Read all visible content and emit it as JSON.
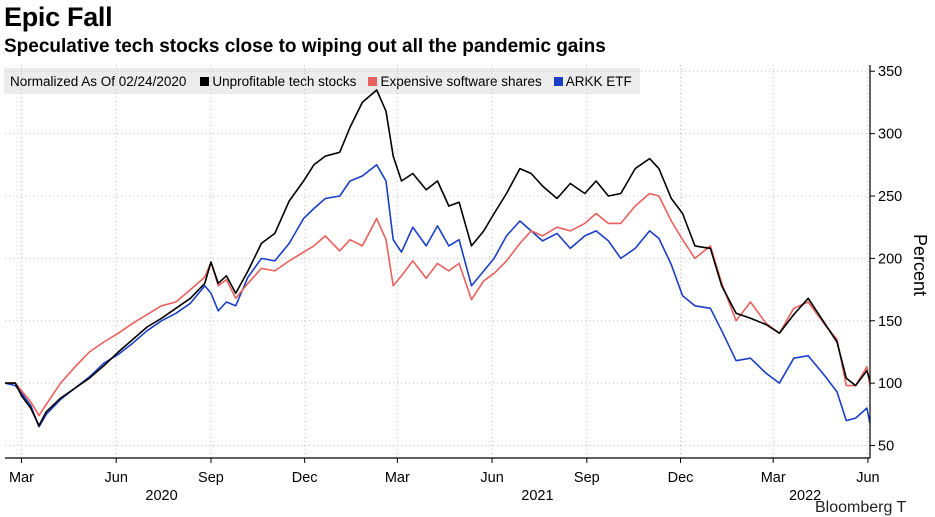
{
  "header": {
    "title": "Epic Fall",
    "subtitle": "Speculative tech stocks close to wiping out all the pandemic gains"
  },
  "source": "Bloomberg T",
  "chart_data": {
    "type": "line",
    "title": "Epic Fall",
    "subtitle": "Speculative tech stocks close to wiping out all the pandemic gains",
    "note": "Normalized As Of 02/24/2020",
    "ylabel": "Percent",
    "y_axis_side": "right",
    "ylim": [
      40,
      355
    ],
    "yticks": [
      50,
      100,
      150,
      200,
      250,
      300,
      350
    ],
    "grid": true,
    "legend_position": "top-left",
    "xlim": [
      "2020-02-14",
      "2022-06-03"
    ],
    "month_ticks": [
      {
        "date": "2020-03-01",
        "label": "Mar"
      },
      {
        "date": "2020-06-01",
        "label": "Jun"
      },
      {
        "date": "2020-09-01",
        "label": "Sep"
      },
      {
        "date": "2020-12-01",
        "label": "Dec"
      },
      {
        "date": "2021-03-01",
        "label": "Mar"
      },
      {
        "date": "2021-06-01",
        "label": "Jun"
      },
      {
        "date": "2021-09-01",
        "label": "Sep"
      },
      {
        "date": "2021-12-01",
        "label": "Dec"
      },
      {
        "date": "2022-03-01",
        "label": "Mar"
      },
      {
        "date": "2022-06-01",
        "label": "Jun"
      }
    ],
    "year_labels": [
      {
        "label": "2020",
        "date": "2020-07-15"
      },
      {
        "label": "2021",
        "date": "2021-07-15"
      },
      {
        "label": "2022",
        "date": "2022-04-01"
      }
    ],
    "series": [
      {
        "name": "Unprofitable tech stocks",
        "color": "#000000",
        "points": [
          [
            "2020-02-14",
            100
          ],
          [
            "2020-02-24",
            100
          ],
          [
            "2020-03-01",
            90
          ],
          [
            "2020-03-10",
            80
          ],
          [
            "2020-03-18",
            66
          ],
          [
            "2020-03-25",
            77
          ],
          [
            "2020-04-08",
            88
          ],
          [
            "2020-04-22",
            96
          ],
          [
            "2020-05-06",
            104
          ],
          [
            "2020-05-20",
            114
          ],
          [
            "2020-06-03",
            125
          ],
          [
            "2020-06-17",
            135
          ],
          [
            "2020-07-01",
            145
          ],
          [
            "2020-07-15",
            152
          ],
          [
            "2020-07-29",
            160
          ],
          [
            "2020-08-12",
            168
          ],
          [
            "2020-08-26",
            180
          ],
          [
            "2020-09-01",
            197
          ],
          [
            "2020-09-08",
            180
          ],
          [
            "2020-09-16",
            186
          ],
          [
            "2020-09-25",
            172
          ],
          [
            "2020-10-07",
            190
          ],
          [
            "2020-10-20",
            212
          ],
          [
            "2020-11-02",
            220
          ],
          [
            "2020-11-16",
            246
          ],
          [
            "2020-11-30",
            262
          ],
          [
            "2020-12-10",
            275
          ],
          [
            "2020-12-21",
            282
          ],
          [
            "2021-01-04",
            285
          ],
          [
            "2021-01-14",
            305
          ],
          [
            "2021-01-26",
            325
          ],
          [
            "2021-02-09",
            335
          ],
          [
            "2021-02-18",
            318
          ],
          [
            "2021-02-25",
            282
          ],
          [
            "2021-03-05",
            262
          ],
          [
            "2021-03-16",
            268
          ],
          [
            "2021-03-29",
            255
          ],
          [
            "2021-04-09",
            262
          ],
          [
            "2021-04-20",
            242
          ],
          [
            "2021-04-30",
            245
          ],
          [
            "2021-05-12",
            210
          ],
          [
            "2021-05-24",
            222
          ],
          [
            "2021-06-03",
            236
          ],
          [
            "2021-06-15",
            252
          ],
          [
            "2021-06-28",
            272
          ],
          [
            "2021-07-09",
            268
          ],
          [
            "2021-07-20",
            258
          ],
          [
            "2021-08-03",
            248
          ],
          [
            "2021-08-16",
            260
          ],
          [
            "2021-08-30",
            252
          ],
          [
            "2021-09-10",
            262
          ],
          [
            "2021-09-22",
            250
          ],
          [
            "2021-10-04",
            252
          ],
          [
            "2021-10-18",
            272
          ],
          [
            "2021-11-01",
            280
          ],
          [
            "2021-11-10",
            272
          ],
          [
            "2021-11-22",
            248
          ],
          [
            "2021-12-03",
            236
          ],
          [
            "2021-12-15",
            210
          ],
          [
            "2021-12-30",
            208
          ],
          [
            "2022-01-10",
            178
          ],
          [
            "2022-01-24",
            156
          ],
          [
            "2022-02-07",
            152
          ],
          [
            "2022-02-22",
            147
          ],
          [
            "2022-03-07",
            140
          ],
          [
            "2022-03-21",
            155
          ],
          [
            "2022-04-04",
            168
          ],
          [
            "2022-04-20",
            148
          ],
          [
            "2022-05-02",
            133
          ],
          [
            "2022-05-11",
            104
          ],
          [
            "2022-05-20",
            98
          ],
          [
            "2022-05-31",
            110
          ],
          [
            "2022-06-03",
            102
          ]
        ]
      },
      {
        "name": "Expensive software shares",
        "color": "#e8605c",
        "points": [
          [
            "2020-02-14",
            100
          ],
          [
            "2020-02-24",
            100
          ],
          [
            "2020-03-01",
            94
          ],
          [
            "2020-03-10",
            85
          ],
          [
            "2020-03-18",
            74
          ],
          [
            "2020-03-25",
            83
          ],
          [
            "2020-04-08",
            100
          ],
          [
            "2020-04-22",
            113
          ],
          [
            "2020-05-06",
            125
          ],
          [
            "2020-05-20",
            133
          ],
          [
            "2020-06-03",
            140
          ],
          [
            "2020-06-17",
            148
          ],
          [
            "2020-07-01",
            155
          ],
          [
            "2020-07-15",
            162
          ],
          [
            "2020-07-29",
            165
          ],
          [
            "2020-08-12",
            175
          ],
          [
            "2020-08-26",
            185
          ],
          [
            "2020-09-01",
            197
          ],
          [
            "2020-09-08",
            178
          ],
          [
            "2020-09-16",
            183
          ],
          [
            "2020-09-25",
            168
          ],
          [
            "2020-10-07",
            180
          ],
          [
            "2020-10-20",
            192
          ],
          [
            "2020-11-02",
            190
          ],
          [
            "2020-11-16",
            198
          ],
          [
            "2020-11-30",
            205
          ],
          [
            "2020-12-10",
            210
          ],
          [
            "2020-12-21",
            218
          ],
          [
            "2021-01-04",
            206
          ],
          [
            "2021-01-14",
            215
          ],
          [
            "2021-01-26",
            210
          ],
          [
            "2021-02-09",
            232
          ],
          [
            "2021-02-18",
            215
          ],
          [
            "2021-02-25",
            178
          ],
          [
            "2021-03-05",
            186
          ],
          [
            "2021-03-16",
            198
          ],
          [
            "2021-03-29",
            184
          ],
          [
            "2021-04-09",
            196
          ],
          [
            "2021-04-20",
            190
          ],
          [
            "2021-04-30",
            196
          ],
          [
            "2021-05-12",
            167
          ],
          [
            "2021-05-24",
            182
          ],
          [
            "2021-06-03",
            188
          ],
          [
            "2021-06-15",
            198
          ],
          [
            "2021-06-28",
            212
          ],
          [
            "2021-07-09",
            222
          ],
          [
            "2021-07-20",
            218
          ],
          [
            "2021-08-03",
            225
          ],
          [
            "2021-08-16",
            222
          ],
          [
            "2021-08-30",
            228
          ],
          [
            "2021-09-10",
            236
          ],
          [
            "2021-09-22",
            228
          ],
          [
            "2021-10-04",
            228
          ],
          [
            "2021-10-18",
            242
          ],
          [
            "2021-11-01",
            252
          ],
          [
            "2021-11-10",
            250
          ],
          [
            "2021-11-22",
            230
          ],
          [
            "2021-12-03",
            215
          ],
          [
            "2021-12-15",
            200
          ],
          [
            "2021-12-30",
            210
          ],
          [
            "2022-01-10",
            180
          ],
          [
            "2022-01-24",
            150
          ],
          [
            "2022-02-07",
            165
          ],
          [
            "2022-02-22",
            148
          ],
          [
            "2022-03-07",
            140
          ],
          [
            "2022-03-21",
            160
          ],
          [
            "2022-04-04",
            165
          ],
          [
            "2022-04-20",
            147
          ],
          [
            "2022-05-02",
            135
          ],
          [
            "2022-05-11",
            98
          ],
          [
            "2022-05-20",
            98
          ],
          [
            "2022-05-31",
            113
          ],
          [
            "2022-06-03",
            98
          ]
        ]
      },
      {
        "name": "ARKK ETF",
        "color": "#1a3fc4",
        "points": [
          [
            "2020-02-14",
            100
          ],
          [
            "2020-02-24",
            98
          ],
          [
            "2020-03-01",
            92
          ],
          [
            "2020-03-10",
            82
          ],
          [
            "2020-03-18",
            65
          ],
          [
            "2020-03-25",
            75
          ],
          [
            "2020-04-08",
            87
          ],
          [
            "2020-04-22",
            96
          ],
          [
            "2020-05-06",
            105
          ],
          [
            "2020-05-20",
            116
          ],
          [
            "2020-06-03",
            123
          ],
          [
            "2020-06-17",
            132
          ],
          [
            "2020-07-01",
            142
          ],
          [
            "2020-07-15",
            150
          ],
          [
            "2020-07-29",
            156
          ],
          [
            "2020-08-12",
            164
          ],
          [
            "2020-08-26",
            178
          ],
          [
            "2020-09-01",
            172
          ],
          [
            "2020-09-08",
            158
          ],
          [
            "2020-09-16",
            165
          ],
          [
            "2020-09-25",
            162
          ],
          [
            "2020-10-07",
            185
          ],
          [
            "2020-10-20",
            200
          ],
          [
            "2020-11-02",
            198
          ],
          [
            "2020-11-16",
            212
          ],
          [
            "2020-11-30",
            232
          ],
          [
            "2020-12-10",
            240
          ],
          [
            "2020-12-21",
            248
          ],
          [
            "2021-01-04",
            250
          ],
          [
            "2021-01-14",
            262
          ],
          [
            "2021-01-26",
            266
          ],
          [
            "2021-02-09",
            275
          ],
          [
            "2021-02-18",
            262
          ],
          [
            "2021-02-25",
            215
          ],
          [
            "2021-03-05",
            205
          ],
          [
            "2021-03-16",
            225
          ],
          [
            "2021-03-29",
            210
          ],
          [
            "2021-04-09",
            226
          ],
          [
            "2021-04-20",
            210
          ],
          [
            "2021-04-30",
            215
          ],
          [
            "2021-05-12",
            178
          ],
          [
            "2021-05-24",
            190
          ],
          [
            "2021-06-03",
            200
          ],
          [
            "2021-06-15",
            218
          ],
          [
            "2021-06-28",
            230
          ],
          [
            "2021-07-09",
            222
          ],
          [
            "2021-07-20",
            214
          ],
          [
            "2021-08-03",
            220
          ],
          [
            "2021-08-16",
            208
          ],
          [
            "2021-08-30",
            218
          ],
          [
            "2021-09-10",
            222
          ],
          [
            "2021-09-22",
            214
          ],
          [
            "2021-10-04",
            200
          ],
          [
            "2021-10-18",
            208
          ],
          [
            "2021-11-01",
            222
          ],
          [
            "2021-11-10",
            216
          ],
          [
            "2021-11-22",
            195
          ],
          [
            "2021-12-03",
            170
          ],
          [
            "2021-12-15",
            162
          ],
          [
            "2021-12-30",
            160
          ],
          [
            "2022-01-10",
            142
          ],
          [
            "2022-01-24",
            118
          ],
          [
            "2022-02-07",
            120
          ],
          [
            "2022-02-22",
            108
          ],
          [
            "2022-03-07",
            100
          ],
          [
            "2022-03-21",
            120
          ],
          [
            "2022-04-04",
            122
          ],
          [
            "2022-04-20",
            106
          ],
          [
            "2022-05-02",
            93
          ],
          [
            "2022-05-11",
            70
          ],
          [
            "2022-05-20",
            72
          ],
          [
            "2022-05-31",
            80
          ],
          [
            "2022-06-03",
            68
          ]
        ]
      }
    ]
  }
}
